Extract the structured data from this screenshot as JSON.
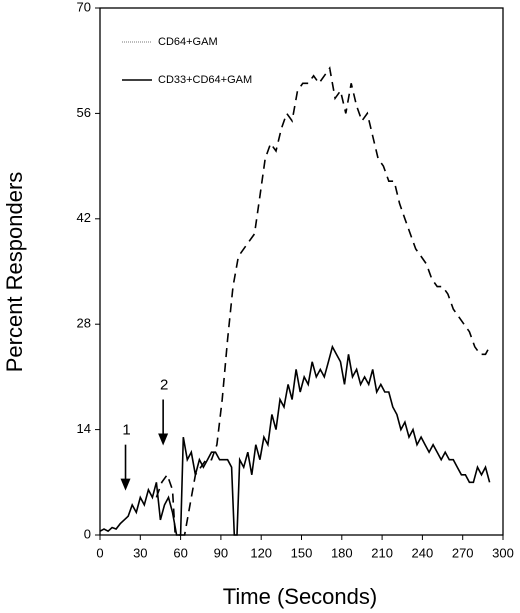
{
  "chart_data": {
    "type": "line",
    "xlabel": "Time (Seconds)",
    "ylabel": "Percent Responders",
    "xlim": [
      0,
      300
    ],
    "xticks": [
      0,
      30,
      60,
      90,
      120,
      150,
      180,
      210,
      240,
      270,
      300
    ],
    "ylim": [
      0,
      70
    ],
    "yticks": [
      0,
      14,
      28,
      42,
      56,
      70
    ],
    "legend": "upper left",
    "annotations": [
      "1",
      "2"
    ],
    "series": [
      {
        "name": "CD64+GAM",
        "color": "#000000",
        "dashed": true,
        "x": [
          42,
          46,
          50,
          54,
          56,
          60,
          63,
          67,
          71,
          75,
          79,
          83,
          87,
          91,
          95,
          99,
          103,
          107,
          111,
          115,
          119,
          123,
          127,
          131,
          135,
          139,
          143,
          147,
          151,
          155,
          159,
          163,
          167,
          171,
          175,
          179,
          183,
          187,
          191,
          195,
          199,
          203,
          207,
          211,
          215,
          219,
          223,
          227,
          231,
          235,
          239,
          243,
          247,
          251,
          255,
          259,
          263,
          267,
          271,
          275,
          279,
          283,
          287,
          290
        ],
        "values": [
          5,
          7,
          8,
          6,
          0,
          0,
          0,
          4,
          8,
          9,
          10,
          10,
          12,
          18,
          26,
          33,
          37,
          38,
          39,
          40,
          45,
          50,
          52,
          51,
          54,
          56,
          55,
          59,
          60,
          60,
          61,
          60,
          61,
          62,
          58,
          59,
          56,
          60,
          57,
          55,
          56,
          53,
          50,
          49,
          47,
          47,
          44,
          42,
          40,
          38,
          37,
          36,
          34,
          33,
          33,
          32,
          30,
          29,
          28,
          27,
          25,
          24,
          24,
          25
        ]
      },
      {
        "name": "CD33+CD64+GAM",
        "color": "#000000",
        "dashed": false,
        "x": [
          0,
          3,
          6,
          9,
          12,
          15,
          18,
          21,
          24,
          27,
          30,
          33,
          36,
          39,
          42,
          45,
          48,
          51,
          54,
          57,
          60,
          62,
          65,
          68,
          71,
          74,
          77,
          80,
          83,
          86,
          89,
          92,
          95,
          98,
          100,
          102,
          104,
          107,
          110,
          113,
          116,
          119,
          122,
          125,
          128,
          131,
          134,
          137,
          140,
          143,
          146,
          149,
          152,
          155,
          158,
          161,
          164,
          167,
          170,
          173,
          176,
          179,
          182,
          185,
          188,
          191,
          194,
          197,
          200,
          203,
          206,
          209,
          212,
          215,
          218,
          221,
          224,
          227,
          230,
          233,
          236,
          239,
          242,
          245,
          248,
          251,
          254,
          257,
          260,
          263,
          266,
          269,
          272,
          275,
          278,
          281,
          284,
          287,
          290
        ],
        "values": [
          0.5,
          0.8,
          0.5,
          1,
          0.8,
          1.5,
          2,
          2.5,
          4,
          3,
          5,
          4,
          6,
          5,
          7,
          2,
          4,
          5,
          3,
          0,
          0,
          13,
          10,
          11,
          8,
          10,
          9,
          10,
          11,
          11,
          10,
          10,
          10,
          9,
          0,
          0,
          10,
          9,
          11,
          8,
          12,
          10,
          13,
          12,
          16,
          14,
          18,
          17,
          20,
          18,
          22,
          19,
          21,
          20,
          23,
          21,
          22,
          21,
          23,
          25,
          24,
          23,
          20,
          24,
          21,
          22,
          20,
          21,
          20,
          22,
          19,
          20,
          19,
          19,
          17,
          16,
          14,
          15,
          13,
          14,
          12,
          13,
          12,
          11,
          12,
          11,
          10,
          11,
          10,
          10,
          9,
          8,
          8,
          7,
          7,
          9,
          8,
          9,
          7
        ]
      }
    ]
  }
}
